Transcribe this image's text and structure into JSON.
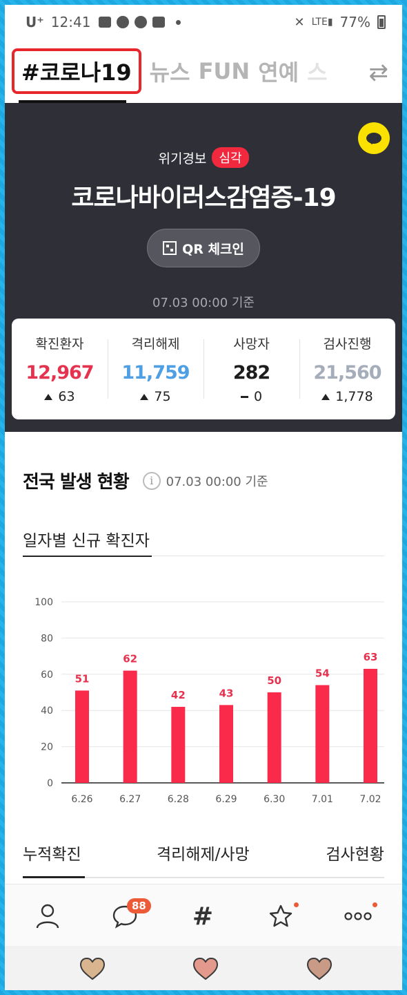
{
  "status_bar": {
    "carrier": "U⁺",
    "time": "12:41",
    "battery": "77%"
  },
  "top_nav": {
    "active_tab": "#코로나19",
    "tabs": [
      "뉴스",
      "FUN",
      "연예",
      "스"
    ]
  },
  "hero": {
    "alert_label": "위기경보",
    "alert_level": "심각",
    "title": "코로나바이러스감염증-19",
    "qr_button": "QR 체크인",
    "as_of": "07.03 00:00 기준"
  },
  "stats": [
    {
      "label": "확진환자",
      "value": "12,967",
      "delta": "63",
      "trend": "up",
      "color": "#e5334f"
    },
    {
      "label": "격리해제",
      "value": "11,759",
      "delta": "75",
      "trend": "up",
      "color": "#4f9fe4"
    },
    {
      "label": "사망자",
      "value": "282",
      "delta": "0",
      "trend": "flat",
      "color": "#1d1d1d"
    },
    {
      "label": "검사진행",
      "value": "21,560",
      "delta": "1,778",
      "trend": "up",
      "color": "#a5adbb"
    }
  ],
  "national": {
    "title": "전국 발생 현황",
    "as_of": "07.03 00:00 기준",
    "subtab": "일자별 신규 확진자"
  },
  "chart_data": {
    "type": "bar",
    "categories": [
      "6.26",
      "6.27",
      "6.28",
      "6.29",
      "6.30",
      "7.01",
      "7.02"
    ],
    "values": [
      51,
      62,
      42,
      43,
      50,
      54,
      63
    ],
    "ylim": [
      0,
      100
    ],
    "yticks": [
      0,
      20,
      40,
      60,
      80,
      100
    ],
    "grid": true,
    "bar_color": "#fa2a4b",
    "label_color": "#e5334f"
  },
  "bottom_tabs": [
    "누적확진",
    "격리해제/사망",
    "검사현황"
  ],
  "bottom_nav": {
    "chat_badge": "88"
  },
  "system_bar": {
    "heart_colors": [
      "#d8b48f",
      "#e39a8c",
      "#c99a85"
    ]
  }
}
